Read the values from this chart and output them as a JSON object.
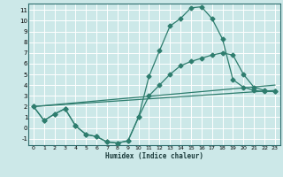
{
  "xlabel": "Humidex (Indice chaleur)",
  "bg_color": "#cce8e8",
  "grid_color": "#ffffff",
  "line_color": "#2e7d6e",
  "xlim": [
    -0.5,
    23.5
  ],
  "ylim": [
    -1.6,
    11.6
  ],
  "xticks": [
    0,
    1,
    2,
    3,
    4,
    5,
    6,
    7,
    8,
    9,
    10,
    11,
    12,
    13,
    14,
    15,
    16,
    17,
    18,
    19,
    20,
    21,
    22,
    23
  ],
  "yticks": [
    -1,
    0,
    1,
    2,
    3,
    4,
    5,
    6,
    7,
    8,
    9,
    10,
    11
  ],
  "curve1_x": [
    0,
    1,
    2,
    3,
    4,
    5,
    6,
    7,
    8,
    9,
    10,
    11,
    12,
    13,
    14,
    15,
    16,
    17,
    18,
    19,
    20,
    21,
    22,
    23
  ],
  "curve1_y": [
    2.0,
    0.7,
    1.3,
    1.8,
    0.2,
    -0.6,
    -0.8,
    -1.3,
    -1.4,
    -1.2,
    1.0,
    4.8,
    7.2,
    9.5,
    10.2,
    11.2,
    11.3,
    10.2,
    8.3,
    4.5,
    3.8,
    3.5,
    3.4,
    3.4
  ],
  "curve2_x": [
    0,
    1,
    2,
    3,
    4,
    5,
    6,
    7,
    8,
    9,
    10,
    11,
    12,
    13,
    14,
    15,
    16,
    17,
    18,
    19,
    20,
    21,
    22,
    23
  ],
  "curve2_y": [
    2.0,
    0.7,
    1.3,
    1.8,
    0.2,
    -0.6,
    -0.8,
    -1.3,
    -1.4,
    -1.2,
    1.0,
    3.0,
    4.0,
    5.0,
    5.8,
    6.2,
    6.5,
    6.8,
    7.0,
    6.8,
    5.0,
    3.8,
    3.5,
    3.4
  ],
  "curve3_x": [
    0,
    23
  ],
  "curve3_y": [
    2.0,
    3.5
  ],
  "curve4_x": [
    0,
    23
  ],
  "curve4_y": [
    2.0,
    4.0
  ]
}
